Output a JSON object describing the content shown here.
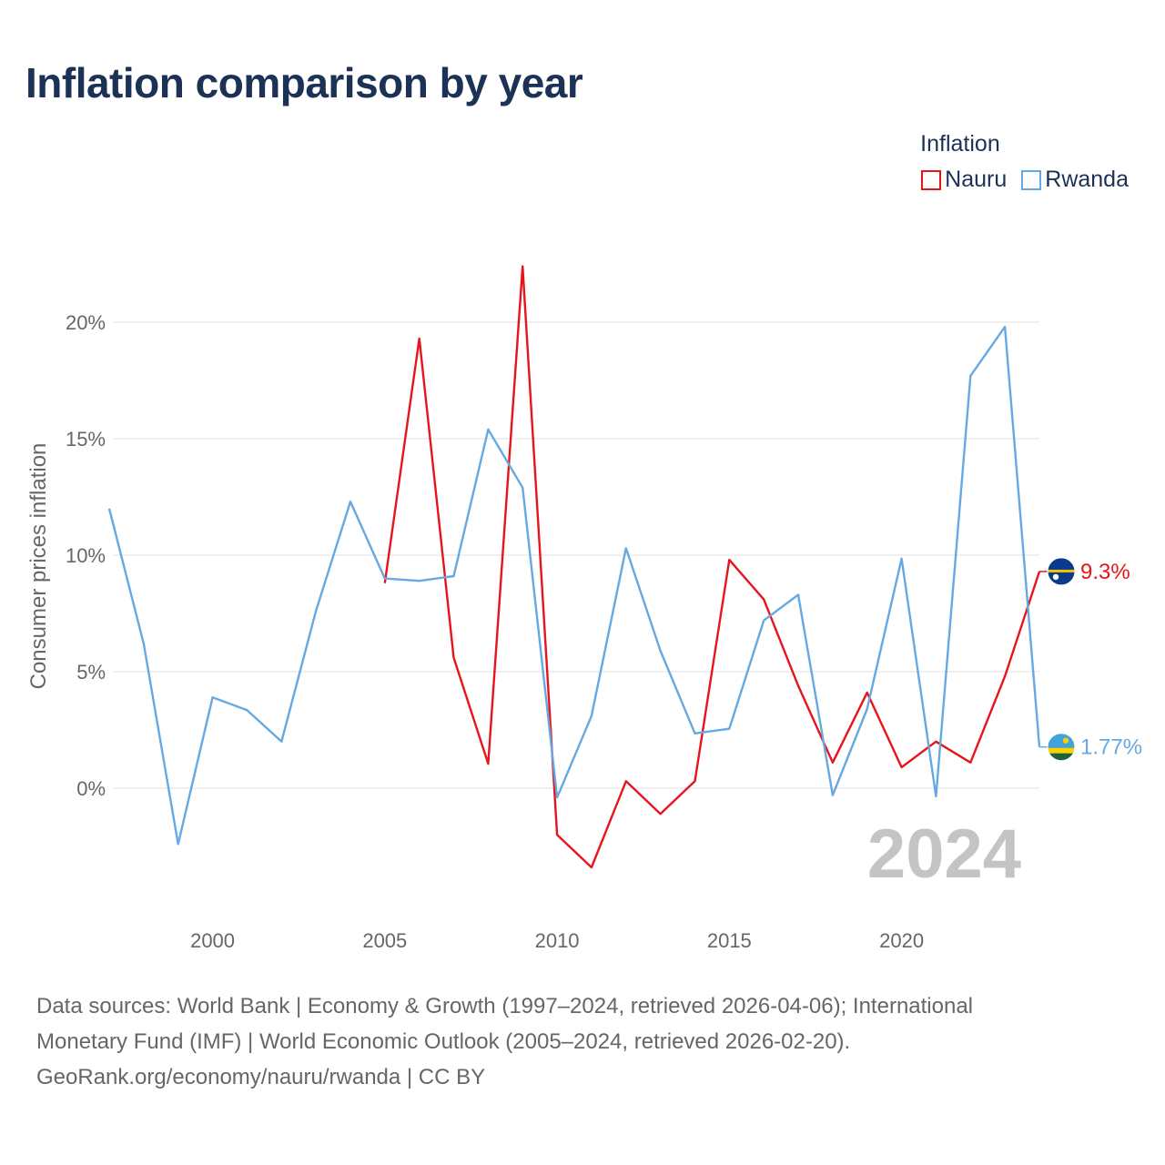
{
  "header": {
    "title": "Inflation comparison by year"
  },
  "legend": {
    "title": "Inflation",
    "items": [
      {
        "name": "Nauru",
        "color": "#e8141c"
      },
      {
        "name": "Rwanda",
        "color": "#65a9e4"
      }
    ]
  },
  "chart_data": {
    "type": "line",
    "title": "Inflation comparison by year",
    "xlabel": "",
    "ylabel": "Consumer prices inflation",
    "xlim": [
      1997,
      2024
    ],
    "ylim": [
      -5,
      22.5
    ],
    "xticks": [
      2000,
      2005,
      2010,
      2015,
      2020
    ],
    "yticks": [
      0,
      5,
      10,
      15,
      20
    ],
    "ytick_suffix": "%",
    "grid": true,
    "legend_position": "top-right",
    "watermark_year": "2024",
    "series": [
      {
        "name": "Nauru",
        "color": "#e8141c",
        "end_label": "9.3%",
        "flag": "nauru",
        "x": [
          2005,
          2006,
          2007,
          2008,
          2009,
          2010,
          2011,
          2012,
          2013,
          2014,
          2015,
          2016,
          2017,
          2018,
          2019,
          2020,
          2021,
          2022,
          2023,
          2024
        ],
        "values": [
          8.8,
          19.3,
          5.6,
          1.05,
          22.4,
          -2.0,
          -3.4,
          0.3,
          -1.1,
          0.3,
          9.8,
          8.1,
          4.4,
          1.1,
          4.1,
          0.9,
          2.0,
          1.1,
          4.8,
          9.3
        ]
      },
      {
        "name": "Rwanda",
        "color": "#65a9e4",
        "end_label": "1.77%",
        "flag": "rwanda",
        "x": [
          1997,
          1998,
          1999,
          2000,
          2001,
          2002,
          2003,
          2004,
          2005,
          2006,
          2007,
          2008,
          2009,
          2010,
          2011,
          2012,
          2013,
          2014,
          2015,
          2016,
          2017,
          2018,
          2019,
          2020,
          2021,
          2022,
          2023,
          2024
        ],
        "values": [
          12.0,
          6.2,
          -2.4,
          3.9,
          3.35,
          2.0,
          7.6,
          12.3,
          9.0,
          8.9,
          9.1,
          15.4,
          12.9,
          -0.4,
          3.1,
          10.3,
          5.9,
          2.35,
          2.55,
          7.2,
          8.3,
          -0.3,
          3.4,
          9.85,
          -0.35,
          17.7,
          19.8,
          1.77
        ]
      }
    ]
  },
  "footer": {
    "line1": "Data sources: World Bank | Economy & Growth (1997–2024, retrieved 2026-04-06); International",
    "line2": "Monetary Fund (IMF) | World Economic Outlook (2005–2024, retrieved 2026-02-20).",
    "line3": "GeoRank.org/economy/nauru/rwanda | CC BY"
  }
}
